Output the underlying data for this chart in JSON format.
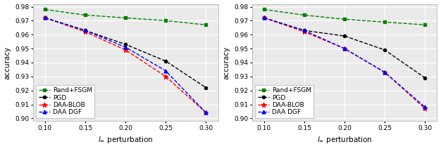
{
  "x": [
    0.1,
    0.15,
    0.2,
    0.25,
    0.3
  ],
  "plot1": {
    "rand_fsgm": [
      0.978,
      0.974,
      0.972,
      0.97,
      0.967
    ],
    "pgd": [
      0.972,
      0.963,
      0.953,
      0.941,
      0.922
    ],
    "daa_blob": [
      0.972,
      0.962,
      0.949,
      0.93,
      0.904
    ],
    "daa_dgf": [
      0.972,
      0.963,
      0.951,
      0.934,
      0.904
    ]
  },
  "plot2": {
    "rand_fsgm": [
      0.978,
      0.974,
      0.971,
      0.969,
      0.967
    ],
    "pgd": [
      0.972,
      0.963,
      0.959,
      0.949,
      0.929
    ],
    "daa_blob": [
      0.972,
      0.962,
      0.95,
      0.933,
      0.907
    ],
    "daa_dgf": [
      0.972,
      0.963,
      0.95,
      0.933,
      0.908
    ]
  },
  "colors": {
    "rand_fsgm": "#008000",
    "pgd": "#000000",
    "daa_blob": "#ff0000",
    "daa_dgf": "#0000ff"
  },
  "legend_labels": {
    "rand_fsgm": "Rand+FSGM",
    "pgd": "PGD",
    "daa_blob": "DAA-BLOB",
    "daa_dgf": "DAA DGF"
  },
  "xlim": [
    0.085,
    0.315
  ],
  "ylim": [
    0.898,
    0.982
  ],
  "xticks": [
    0.1,
    0.15,
    0.2,
    0.25,
    0.3
  ],
  "yticks": [
    0.9,
    0.91,
    0.92,
    0.93,
    0.94,
    0.95,
    0.96,
    0.97,
    0.98
  ],
  "xlabel": "$l_{\\infty}$ perturbation",
  "ylabel": "accuracy",
  "axis_fontsize": 7.5,
  "tick_fontsize": 6.5,
  "legend_fontsize": 6.5,
  "bg_color": "#eaeaea"
}
